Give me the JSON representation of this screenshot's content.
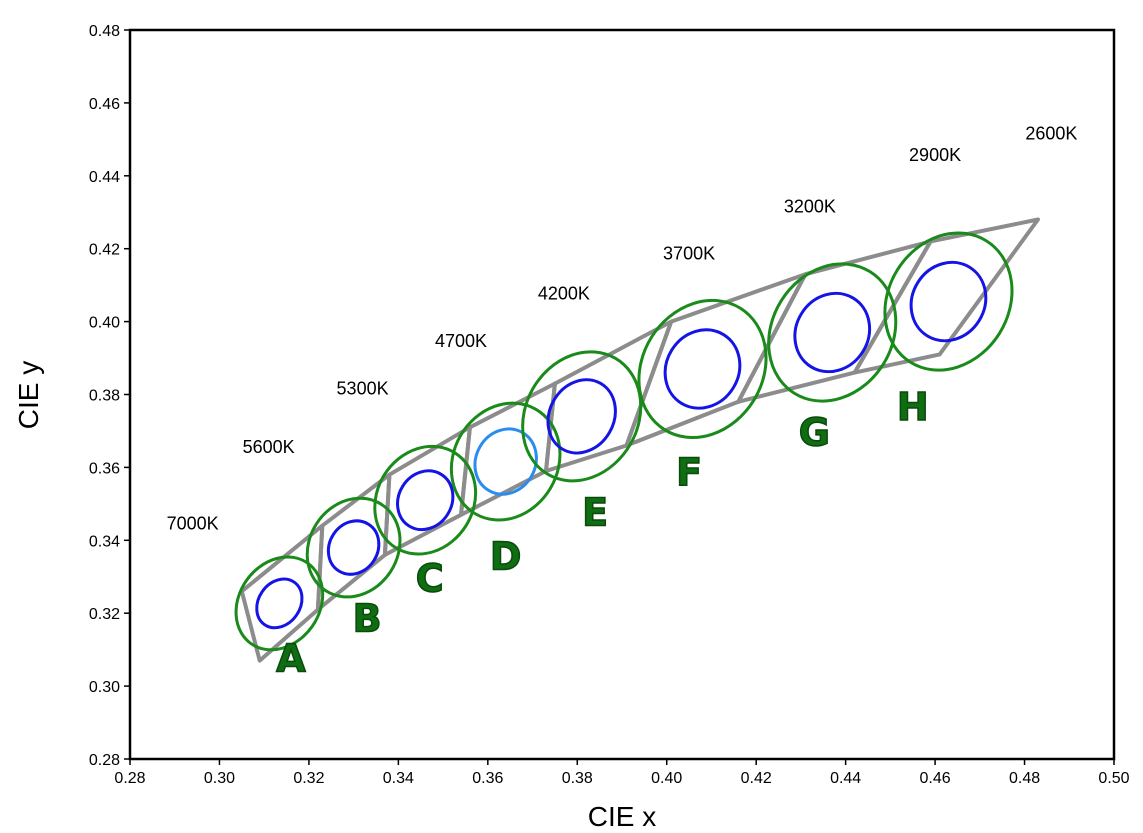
{
  "chart_data": {
    "type": "scatter",
    "title": "",
    "xlabel": "CIE x",
    "ylabel": "CIE y",
    "xlim": [
      0.28,
      0.5
    ],
    "ylim": [
      0.28,
      0.48
    ],
    "xticks": [
      "0.28",
      "0.30",
      "0.32",
      "0.34",
      "0.36",
      "0.38",
      "0.40",
      "0.42",
      "0.44",
      "0.46",
      "0.48",
      "0.50"
    ],
    "yticks": [
      "0.28",
      "0.30",
      "0.32",
      "0.34",
      "0.36",
      "0.38",
      "0.40",
      "0.42",
      "0.44",
      "0.46",
      "0.48"
    ],
    "grid": false,
    "colors": {
      "quadrangle": "#8c8c8c",
      "outer_ellipse": "#1a8a1a",
      "inner_ellipse": "#1414e6",
      "inner_ellipse_D": "#2a8cf0",
      "bin_label": "#0f6e12"
    },
    "cct_labels": [
      {
        "text": "7000K",
        "x": 0.294,
        "y": 0.343
      },
      {
        "text": "5600K",
        "x": 0.311,
        "y": 0.364
      },
      {
        "text": "5300K",
        "x": 0.332,
        "y": 0.38
      },
      {
        "text": "4700K",
        "x": 0.354,
        "y": 0.393
      },
      {
        "text": "4200K",
        "x": 0.377,
        "y": 0.406
      },
      {
        "text": "3700K",
        "x": 0.405,
        "y": 0.417
      },
      {
        "text": "3200K",
        "x": 0.432,
        "y": 0.43
      },
      {
        "text": "2900K",
        "x": 0.46,
        "y": 0.444
      },
      {
        "text": "2600K",
        "x": 0.486,
        "y": 0.45
      }
    ],
    "bins": [
      {
        "label": "A",
        "label_pos": [
          0.316,
          0.304
        ],
        "quad": [
          [
            0.305,
            0.326
          ],
          [
            0.323,
            0.344
          ],
          [
            0.322,
            0.321
          ],
          [
            0.309,
            0.307
          ]
        ],
        "ellipse_center": [
          0.3134,
          0.3227
        ],
        "outer_axes": [
          0.005,
          0.011
        ],
        "inner_axes": [
          0.0026,
          0.0058
        ],
        "angle": 55
      },
      {
        "label": "B",
        "label_pos": [
          0.333,
          0.315
        ],
        "quad": [
          [
            0.322,
            0.321
          ],
          [
            0.323,
            0.344
          ],
          [
            0.338,
            0.358
          ],
          [
            0.337,
            0.336
          ]
        ],
        "ellipse_center": [
          0.33,
          0.338
        ],
        "outer_axes": [
          0.0055,
          0.0115
        ],
        "inner_axes": [
          0.003,
          0.0062
        ],
        "angle": 57
      },
      {
        "label": "C",
        "label_pos": [
          0.347,
          0.326
        ],
        "quad": [
          [
            0.337,
            0.336
          ],
          [
            0.338,
            0.358
          ],
          [
            0.356,
            0.371
          ],
          [
            0.354,
            0.347
          ]
        ],
        "ellipse_center": [
          0.346,
          0.351
        ],
        "outer_axes": [
          0.006,
          0.0125
        ],
        "inner_axes": [
          0.0033,
          0.0068
        ],
        "angle": 58
      },
      {
        "label": "D",
        "label_pos": [
          0.364,
          0.332
        ],
        "quad": [
          [
            0.354,
            0.347
          ],
          [
            0.356,
            0.371
          ],
          [
            0.375,
            0.383
          ],
          [
            0.373,
            0.359
          ]
        ],
        "ellipse_center": [
          0.364,
          0.3616
        ],
        "outer_axes": [
          0.0065,
          0.0135
        ],
        "inner_axes": [
          0.0037,
          0.0075
        ],
        "angle": 60
      },
      {
        "label": "E",
        "label_pos": [
          0.384,
          0.344
        ],
        "quad": [
          [
            0.373,
            0.359
          ],
          [
            0.375,
            0.383
          ],
          [
            0.401,
            0.4
          ],
          [
            0.391,
            0.366
          ]
        ],
        "ellipse_center": [
          0.381,
          0.374
        ],
        "outer_axes": [
          0.007,
          0.015
        ],
        "inner_axes": [
          0.004,
          0.0085
        ],
        "angle": 60
      },
      {
        "label": "F",
        "label_pos": [
          0.405,
          0.355
        ],
        "quad": [
          [
            0.391,
            0.366
          ],
          [
            0.401,
            0.4
          ],
          [
            0.431,
            0.413
          ],
          [
            0.416,
            0.378
          ]
        ],
        "ellipse_center": [
          0.408,
          0.387
        ],
        "outer_axes": [
          0.0075,
          0.016
        ],
        "inner_axes": [
          0.0045,
          0.009
        ],
        "angle": 58
      },
      {
        "label": "G",
        "label_pos": [
          0.433,
          0.366
        ],
        "quad": [
          [
            0.416,
            0.378
          ],
          [
            0.431,
            0.413
          ],
          [
            0.459,
            0.422
          ],
          [
            0.442,
            0.386
          ]
        ],
        "ellipse_center": [
          0.437,
          0.397
        ],
        "outer_axes": [
          0.0075,
          0.016
        ],
        "inner_axes": [
          0.0045,
          0.009
        ],
        "angle": 58
      },
      {
        "label": "H",
        "label_pos": [
          0.455,
          0.373
        ],
        "quad": [
          [
            0.442,
            0.386
          ],
          [
            0.459,
            0.422
          ],
          [
            0.483,
            0.428
          ],
          [
            0.461,
            0.391
          ]
        ],
        "ellipse_center": [
          0.463,
          0.4055
        ],
        "outer_axes": [
          0.0075,
          0.016
        ],
        "inner_axes": [
          0.0045,
          0.009
        ],
        "angle": 58
      }
    ]
  }
}
